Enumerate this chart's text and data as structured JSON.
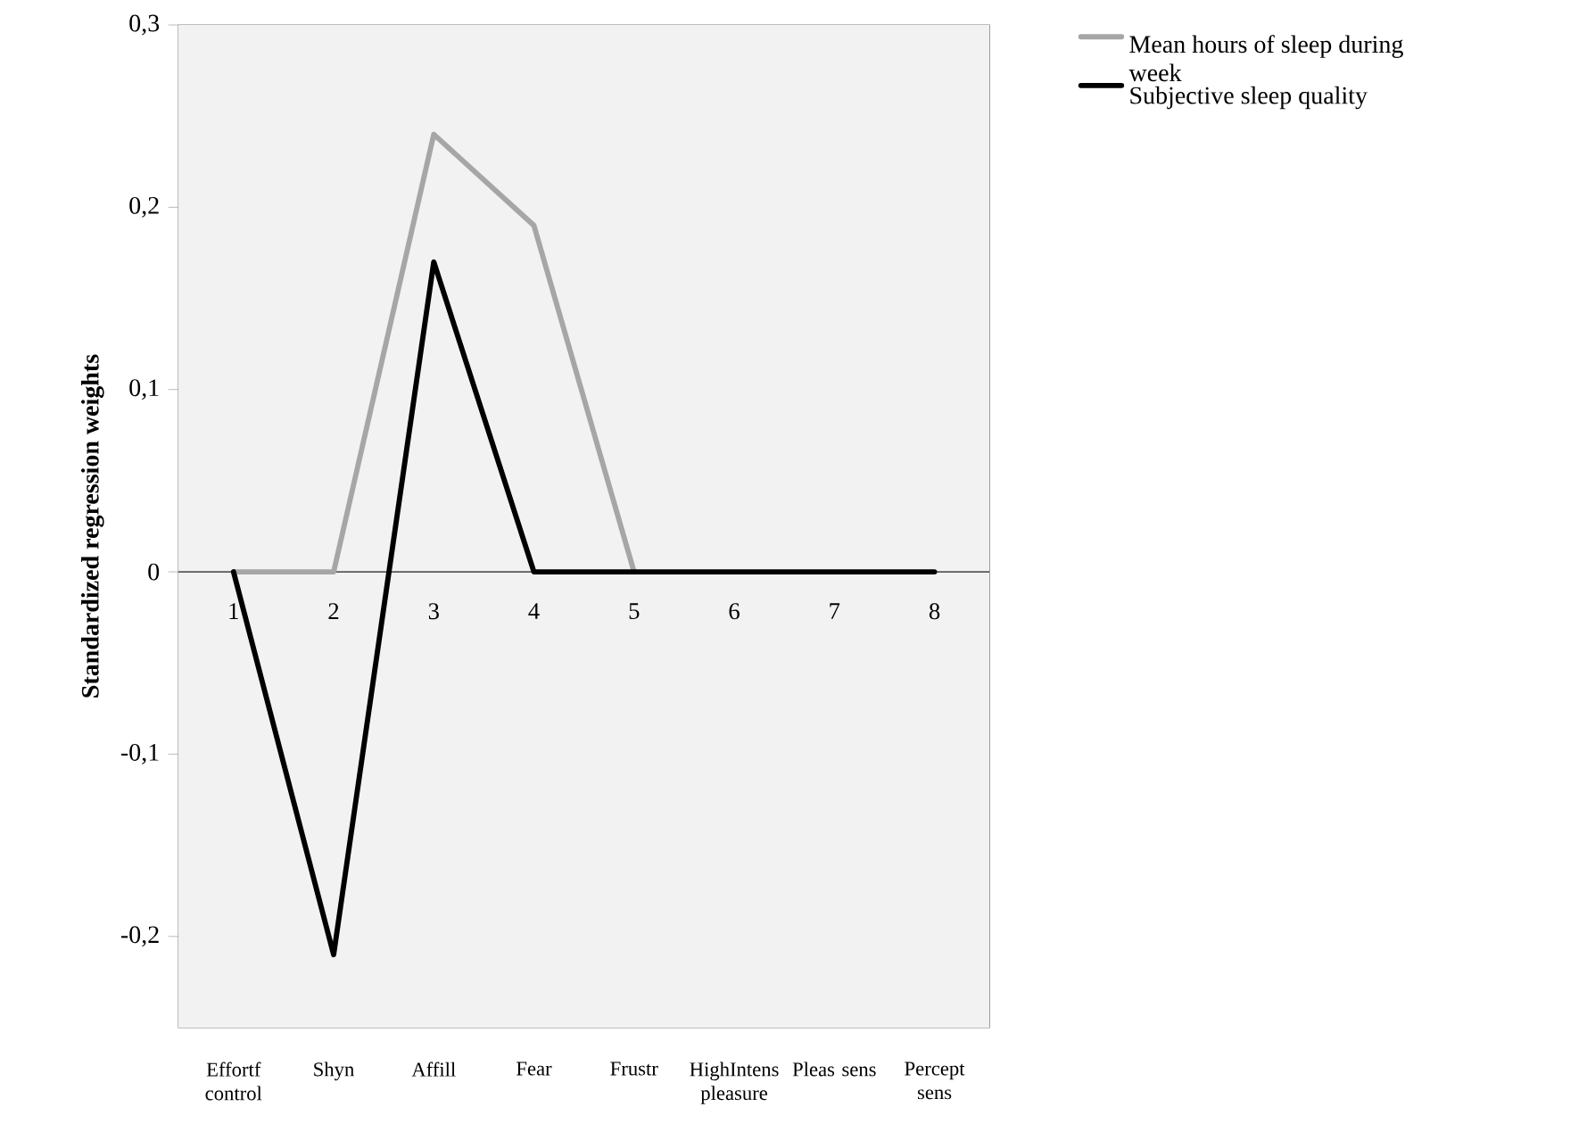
{
  "chart_data": {
    "type": "line",
    "ylabel": "Standardized regression weights",
    "categories": [
      "Effortf control",
      "Shyn",
      "Affill",
      "Fear",
      "Frustr",
      "HighIntens pleasure",
      "Pleas sens",
      "Percept sens"
    ],
    "series": [
      {
        "name": "Mean hours of sleep during week",
        "color": "#a6a6a6",
        "values": [
          0,
          0,
          0.24,
          0.19,
          0,
          null,
          null,
          null
        ]
      },
      {
        "name": "Subjective sleep quality",
        "color": "#000000",
        "values": [
          0,
          -0.21,
          0.17,
          0,
          0,
          0,
          0,
          0
        ]
      }
    ],
    "ylim": [
      -0.25,
      0.3
    ],
    "yticks": [
      {
        "value": -0.2,
        "label": "-0,2"
      },
      {
        "value": -0.1,
        "label": "-0,1"
      },
      {
        "value": 0,
        "label": "0"
      },
      {
        "value": 0.1,
        "label": "0,1"
      },
      {
        "value": 0.2,
        "label": "0,2"
      },
      {
        "value": 0.3,
        "label": "0,3"
      }
    ],
    "ref_lines": [
      {
        "axis": "y",
        "value": 0,
        "color": "#595959"
      }
    ],
    "annotations": [
      {
        "text": "1",
        "x": "Effortf control",
        "y": 0
      },
      {
        "text": "2",
        "x": "Shyn",
        "y": 0
      },
      {
        "text": "3",
        "x": "Affill",
        "y": 0
      },
      {
        "text": "4",
        "x": "Fear",
        "y": 0
      },
      {
        "text": "5",
        "x": "Frustr",
        "y": 0
      },
      {
        "text": "6",
        "x": "HighIntens pleasure",
        "y": 0
      },
      {
        "text": "7",
        "x": "Pleas sens",
        "y": 0
      },
      {
        "text": "8",
        "x": "Percept sens",
        "y": 0
      }
    ],
    "legend": "top right",
    "grid": false,
    "marker": "none",
    "line_style": "solid"
  }
}
